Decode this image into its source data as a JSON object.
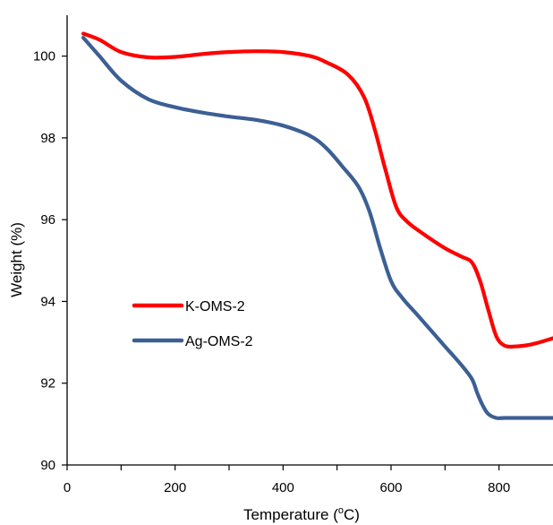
{
  "chart_data": {
    "type": "line",
    "xlabel": "Temperature (",
    "xlabel_sup": "o",
    "xlabel_end": "C)",
    "ylabel": "Weight (%)",
    "xlim": [
      0,
      900
    ],
    "ylim": [
      90,
      101
    ],
    "xticks": [
      0,
      200,
      400,
      600,
      800
    ],
    "xticks_minor": [
      100,
      300,
      500,
      700
    ],
    "yticks": [
      90,
      92,
      94,
      96,
      98,
      100
    ],
    "grid": false,
    "legend_position": "lower-left",
    "series": [
      {
        "name": "K-OMS-2",
        "color": "#ff0000",
        "x": [
          30,
          60,
          100,
          150,
          200,
          250,
          300,
          350,
          400,
          450,
          480,
          520,
          550,
          570,
          590,
          610,
          630,
          660,
          700,
          730,
          750,
          765,
          780,
          795,
          810,
          830,
          860,
          900
        ],
        "y": [
          100.55,
          100.4,
          100.1,
          99.97,
          99.98,
          100.05,
          100.1,
          100.12,
          100.1,
          100.0,
          99.85,
          99.55,
          99.0,
          98.2,
          97.2,
          96.3,
          95.95,
          95.65,
          95.3,
          95.1,
          94.95,
          94.5,
          93.8,
          93.15,
          92.92,
          92.9,
          92.95,
          93.1
        ]
      },
      {
        "name": "Ag-OMS-2",
        "color": "#3c5f94",
        "x": [
          30,
          60,
          100,
          150,
          200,
          250,
          300,
          350,
          400,
          450,
          480,
          510,
          540,
          560,
          580,
          600,
          620,
          650,
          700,
          730,
          750,
          760,
          770,
          780,
          795,
          810,
          850,
          900
        ],
        "y": [
          100.45,
          100.0,
          99.4,
          98.95,
          98.75,
          98.62,
          98.52,
          98.44,
          98.3,
          98.05,
          97.75,
          97.3,
          96.8,
          96.2,
          95.3,
          94.5,
          94.1,
          93.65,
          92.9,
          92.45,
          92.1,
          91.75,
          91.45,
          91.25,
          91.15,
          91.15,
          91.15,
          91.15
        ]
      }
    ]
  }
}
